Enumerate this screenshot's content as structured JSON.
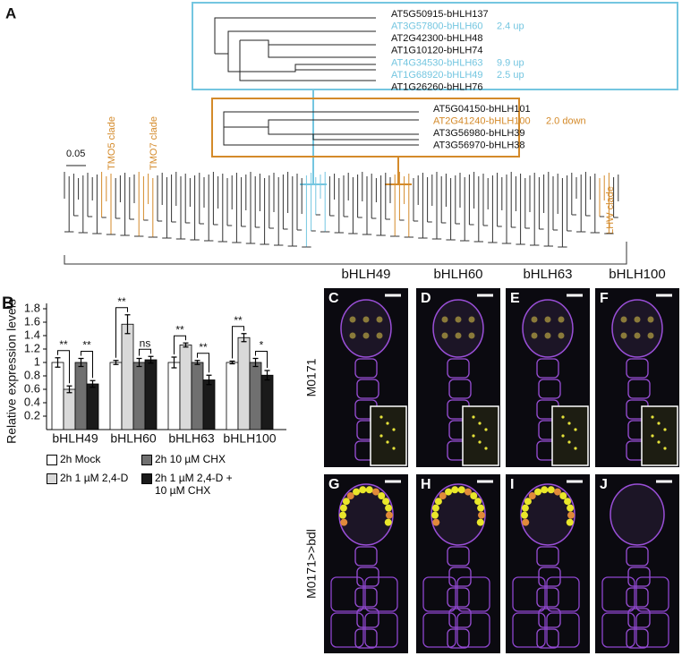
{
  "panel_a": {
    "label": "A",
    "scale": "0.05",
    "clades": [
      "TMO5 clade",
      "TMO7 clade",
      "LHW clade"
    ],
    "cyan_genes": [
      {
        "name": "AT5G50915-bHLH137"
      },
      {
        "name": "AT3G57800-bHLH60",
        "change": "2.4 up"
      },
      {
        "name": "AT2G42300-bHLH48"
      },
      {
        "name": "AT1G10120-bHLH74"
      },
      {
        "name": "AT4G34530-bHLH63",
        "change": "9.9 up"
      },
      {
        "name": "AT1G68920-bHLH49",
        "change": "2.5 up"
      },
      {
        "name": "AT1G26260-bHLH76"
      }
    ],
    "orange_genes": [
      {
        "name": "AT5G04150-bHLH101"
      },
      {
        "name": "AT2G41240-bHLH100",
        "change": "2.0 down"
      },
      {
        "name": "AT3G56980-bHLH39"
      },
      {
        "name": "AT3G56970-bHLH38"
      }
    ]
  },
  "chart_data": {
    "type": "bar",
    "label": "B",
    "ylabel": "Relative expression levels",
    "categories": [
      "bHLH49",
      "bHLH60",
      "bHLH63",
      "bHLH100"
    ],
    "series": [
      {
        "name": "2h Mock",
        "color": "#ffffff",
        "values": [
          1.0,
          1.0,
          1.0,
          1.0
        ],
        "errors": [
          0.07,
          0.03,
          0.08,
          0.02
        ]
      },
      {
        "name": "2h 1 µM 2,4-D",
        "color": "#d9d9d9",
        "values": [
          0.6,
          1.57,
          1.26,
          1.37
        ],
        "errors": [
          0.05,
          0.14,
          0.03,
          0.06
        ]
      },
      {
        "name": "2h 10 µM CHX",
        "color": "#707070",
        "values": [
          1.0,
          1.0,
          1.0,
          1.0
        ],
        "errors": [
          0.06,
          0.06,
          0.03,
          0.06
        ]
      },
      {
        "name": "2h 1 µM 2,4-D + 10 µM CHX",
        "color": "#1a1a1a",
        "values": [
          0.68,
          1.04,
          0.74,
          0.81
        ],
        "errors": [
          0.05,
          0.05,
          0.07,
          0.07
        ]
      }
    ],
    "annotations": [
      "**",
      "**",
      "**",
      "ns",
      "**",
      "**",
      "**",
      "*"
    ],
    "ylim": [
      0,
      1.8
    ],
    "yticks": [
      0.2,
      0.4,
      0.6,
      0.8,
      1,
      1.2,
      1.4,
      1.6,
      1.8
    ]
  },
  "images": {
    "columns": [
      "bHLH49",
      "bHLH60",
      "bHLH63",
      "bHLH100"
    ],
    "rows": [
      "M0171",
      "M0171>>bdl"
    ],
    "panels": [
      "C",
      "D",
      "E",
      "F",
      "G",
      "H",
      "I",
      "J"
    ]
  }
}
